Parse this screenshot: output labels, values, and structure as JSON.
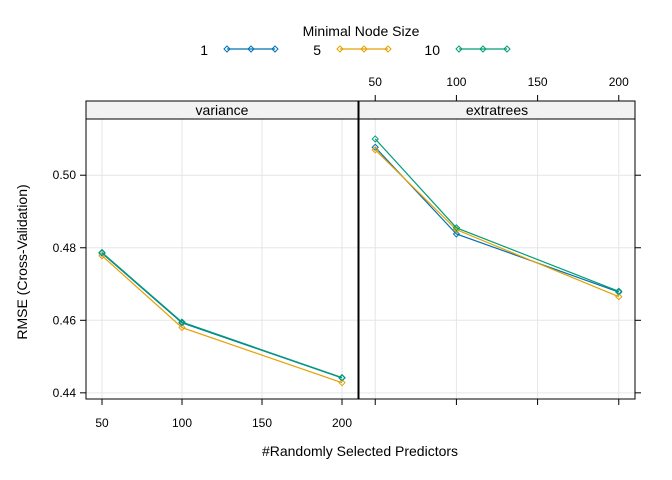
{
  "chart_data": {
    "type": "line",
    "ylabel": "RMSE (Cross-Validation)",
    "xlabel": "#Randomly Selected Predictors",
    "xlim": [
      40,
      210
    ],
    "ylim": [
      0.4383,
      0.5155
    ],
    "x_ticks": [
      50,
      100,
      150,
      200
    ],
    "x_tick_labels": [
      "50",
      "100",
      "150",
      "200"
    ],
    "y_ticks": [
      0.44,
      0.46,
      0.48,
      0.5
    ],
    "y_tick_labels": [
      "0.44",
      "0.46",
      "0.48",
      "0.50"
    ],
    "grid": true,
    "legend": {
      "title": "Minimal Node Size",
      "position": "top",
      "entries": [
        {
          "label": "1",
          "color": "#0072B2"
        },
        {
          "label": "5",
          "color": "#E69F00"
        },
        {
          "label": "10",
          "color": "#009E73"
        }
      ]
    },
    "panels": [
      {
        "strip": "variance",
        "x": [
          50,
          100,
          200
        ],
        "series": [
          {
            "name": "1",
            "color": "#0072B2",
            "values": [
              0.4785,
              0.4593,
              0.4441
            ]
          },
          {
            "name": "5",
            "color": "#E69F00",
            "values": [
              0.4778,
              0.458,
              0.4428
            ]
          },
          {
            "name": "10",
            "color": "#009E73",
            "values": [
              0.4787,
              0.4595,
              0.4442
            ]
          }
        ]
      },
      {
        "strip": "extratrees",
        "x": [
          50,
          100,
          200
        ],
        "series": [
          {
            "name": "1",
            "color": "#0072B2",
            "values": [
              0.5077,
              0.4838,
              0.4678
            ]
          },
          {
            "name": "5",
            "color": "#E69F00",
            "values": [
              0.507,
              0.485,
              0.4665
            ]
          },
          {
            "name": "10",
            "color": "#009E73",
            "values": [
              0.51,
              0.4855,
              0.468
            ]
          }
        ]
      }
    ]
  }
}
